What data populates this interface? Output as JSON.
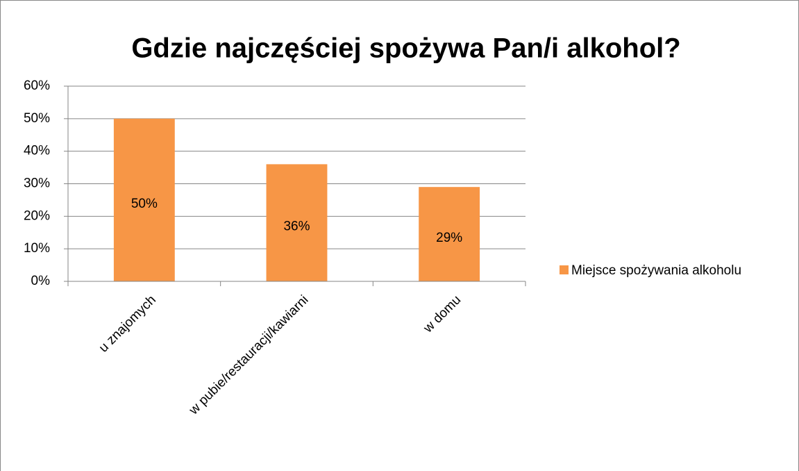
{
  "chart_data": {
    "type": "bar",
    "title": "Gdzie najczęściej spożywa Pan/i alkohol?",
    "categories": [
      "u znajomych",
      "w pubie/restauracji/kawiarni",
      "w domu"
    ],
    "series": [
      {
        "name": "Miejsce spożywania alkoholu",
        "color": "#f79646",
        "values": [
          50,
          36,
          29
        ],
        "value_labels": [
          "50%",
          "36%",
          "29%"
        ]
      }
    ],
    "ylim": [
      0,
      60
    ],
    "yticks": [
      {
        "value": 0,
        "label": "0%"
      },
      {
        "value": 10,
        "label": "10%"
      },
      {
        "value": 20,
        "label": "20%"
      },
      {
        "value": 30,
        "label": "30%"
      },
      {
        "value": 40,
        "label": "40%"
      },
      {
        "value": 50,
        "label": "50%"
      },
      {
        "value": 60,
        "label": "60%"
      }
    ],
    "grid": true,
    "legend": "right"
  }
}
